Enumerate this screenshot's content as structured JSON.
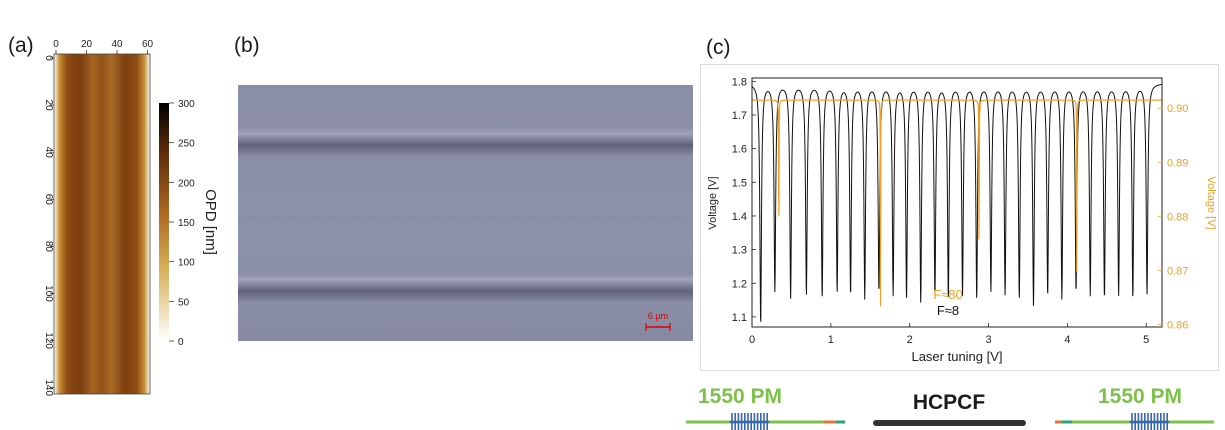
{
  "panels": {
    "a": {
      "label": "(a)",
      "x_ticks": [
        "0",
        "20",
        "40",
        "60"
      ],
      "y_ticks": [
        "0",
        "20",
        "40",
        "60",
        "80",
        "100",
        "120",
        "140"
      ],
      "colorbar_ticks": [
        "300",
        "250",
        "200",
        "150",
        "100",
        "50",
        "0"
      ],
      "colorbar_label": "OPD [nm]"
    },
    "b": {
      "label": "(b)",
      "scalebar_label": "6 µm",
      "scalebar_color": "#e00000"
    },
    "c": {
      "label": "(c)",
      "xlabel": "Laser tuning [V]",
      "ylabel_left": "Voltage [V]",
      "ylabel_right": "Voltage [V]",
      "annotation_high_finesse": "F≈80",
      "annotation_low_finesse": "F≈8",
      "colors": {
        "low_finesse": "#111111",
        "high_finesse": "#f0a020"
      }
    }
  },
  "chart_data": {
    "type": "line",
    "xlabel": "Laser tuning [V]",
    "xlim": [
      0,
      5.2
    ],
    "x_ticks": [
      "0",
      "1",
      "2",
      "3",
      "4",
      "5"
    ],
    "y_left": {
      "label": "Voltage [V]",
      "lim": [
        1.07,
        1.81
      ],
      "ticks": [
        "1.1",
        "1.2",
        "1.3",
        "1.4",
        "1.5",
        "1.6",
        "1.7",
        "1.8"
      ]
    },
    "y_right": {
      "label": "Voltage [V]",
      "lim": [
        0.8595,
        0.9056
      ],
      "ticks": [
        "0.86",
        "0.87",
        "0.88",
        "0.89",
        "0.90"
      ]
    },
    "series": [
      {
        "axis": "left",
        "color": "#111111",
        "baseline": 1.795,
        "dip_x": [
          0.11,
          0.29,
          0.49,
          0.69,
          0.89,
          1.08,
          1.25,
          1.43,
          1.61,
          1.79,
          1.96,
          2.14,
          2.32,
          2.49,
          2.67,
          2.85,
          3.03,
          3.21,
          3.39,
          3.57,
          3.75,
          3.93,
          4.11,
          4.29,
          4.47,
          4.65,
          4.83,
          5.01
        ],
        "dip_min": [
          1.08,
          1.18,
          1.16,
          1.17,
          1.16,
          1.18,
          1.17,
          1.16,
          1.18,
          1.17,
          1.16,
          1.15,
          1.17,
          1.16,
          1.17,
          1.16,
          1.18,
          1.17,
          1.16,
          1.14,
          1.17,
          1.16,
          1.18,
          1.17,
          1.16,
          1.17,
          1.16,
          1.17
        ]
      },
      {
        "axis": "right",
        "color": "#f0a020",
        "baseline": 0.9015,
        "dip_x": [
          0.34,
          1.63,
          2.88,
          4.12
        ],
        "dip_min": [
          0.8605,
          0.8595,
          0.8595,
          0.8625
        ]
      }
    ]
  },
  "schematic": {
    "left_fiber_label": "1550 PM",
    "center_label": "HCPCF",
    "right_fiber_label": "1550 PM",
    "colors": {
      "fiber": "#7cc24a",
      "grating": "#3a62b8",
      "hcpcf": "#333333",
      "connector_a": "#e8703a",
      "connector_b": "#2aa27a"
    }
  }
}
